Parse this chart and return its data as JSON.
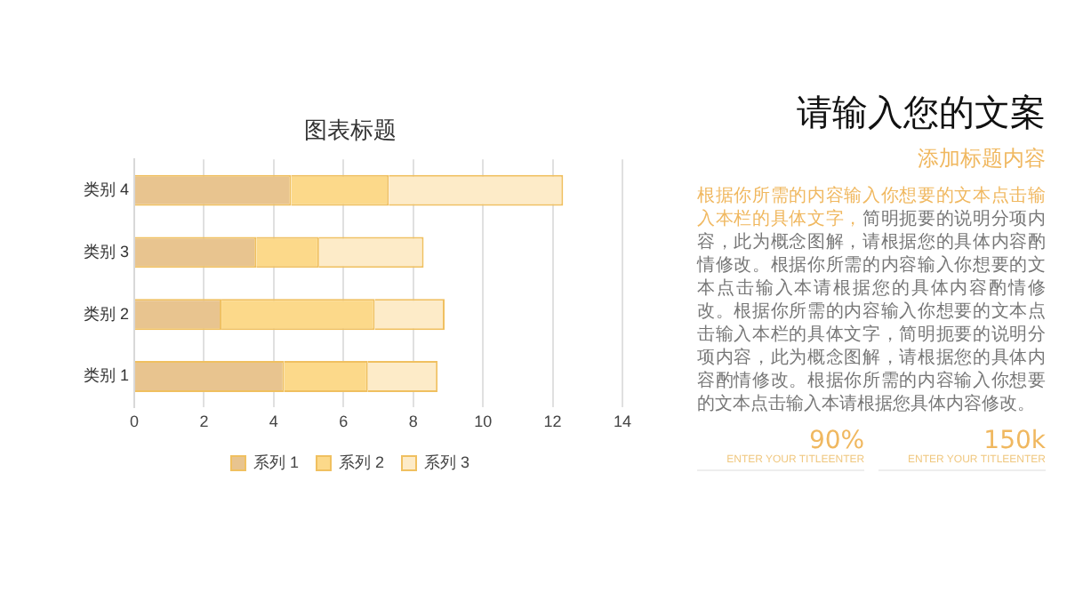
{
  "chart_data": [
    {
      "type": "bar",
      "title": "图表标题",
      "orientation": "horizontal",
      "stacked": true,
      "categories": [
        "类别 4",
        "类别 3",
        "类别 2",
        "类别 1"
      ],
      "series": [
        {
          "name": "系列 1",
          "color": "#e8c48f",
          "values": [
            4.5,
            3.5,
            2.5,
            4.3
          ]
        },
        {
          "name": "系列 2",
          "color": "#fcd98a",
          "values": [
            2.8,
            1.8,
            4.4,
            2.4
          ]
        },
        {
          "name": "系列 3",
          "color": "#fdebc8",
          "values": [
            5,
            3,
            2,
            2
          ]
        }
      ],
      "xlim": [
        0,
        14
      ],
      "xticks": [
        0,
        2,
        4,
        6,
        8,
        10,
        12,
        14
      ],
      "grid": "x",
      "legend": "bottom"
    },
    {
      "type": "other",
      "title": "请输入您的文案",
      "subtitle": "添加标题内容",
      "annotations": [
        "根据你所需的内容输入你想要的文本点击输入本栏的具体文字，",
        "简明扼要的说明分项内容，此为概念图解，请根据您的具体内容酌情修改。根据你所需的内容输入你想要的文本点击输入本请根据您的具体内容酌情修改。根据你所需的内容输入你想要的文本点击输入本栏的具体文字，简明扼要的说明分项内容，此为概念图解，请根据您的具体内容酌情修改。根据你所需的内容输入你想要的文本点击输入本请根据您具体内容修改。",
        "90%",
        "ENTER YOUR TITLEENTER",
        "150k",
        "ENTER YOUR TITLEENTER"
      ]
    }
  ]
}
